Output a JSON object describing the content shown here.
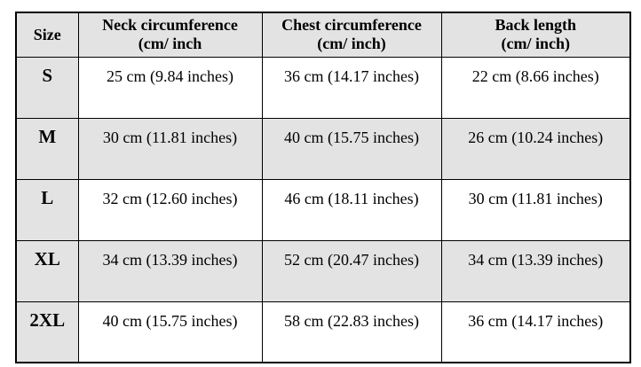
{
  "colors": {
    "page_bg": "#ffffff",
    "shaded_bg": "#e3e3e3",
    "border": "#000000",
    "text": "#000000"
  },
  "size_chart": {
    "columns": [
      {
        "id": "size",
        "line1": "Size",
        "line2": ""
      },
      {
        "id": "neck",
        "line1": "Neck circumference",
        "line2": "(cm/ inch"
      },
      {
        "id": "chest",
        "line1": "Chest circumference",
        "line2": "(cm/ inch)"
      },
      {
        "id": "back",
        "line1": "Back length",
        "line2": "(cm/ inch)"
      }
    ],
    "rows": [
      {
        "size": "S",
        "neck": "25 cm (9.84 inches)",
        "chest": "36 cm (14.17 inches)",
        "back": "22 cm (8.66 inches)"
      },
      {
        "size": "M",
        "neck": "30 cm (11.81 inches)",
        "chest": "40 cm (15.75 inches)",
        "back": "26 cm (10.24 inches)"
      },
      {
        "size": "L",
        "neck": "32 cm (12.60 inches)",
        "chest": "46 cm (18.11 inches)",
        "back": "30 cm (11.81 inches)"
      },
      {
        "size": "XL",
        "neck": "34 cm (13.39 inches)",
        "chest": "52 cm (20.47 inches)",
        "back": "34 cm (13.39 inches)"
      },
      {
        "size": "2XL",
        "neck": "40 cm (15.75 inches)",
        "chest": "58 cm (22.83 inches)",
        "back": "36 cm (14.17 inches)"
      }
    ]
  },
  "chart_data": {
    "type": "table",
    "title": "",
    "columns": [
      "Size",
      "Neck circumference (cm/ inch",
      "Chest circumference (cm/ inch)",
      "Back length (cm/ inch)"
    ],
    "rows": [
      [
        "S",
        "25 cm (9.84 inches)",
        "36 cm (14.17 inches)",
        "22 cm (8.66 inches)"
      ],
      [
        "M",
        "30 cm (11.81 inches)",
        "40 cm (15.75 inches)",
        "26 cm (10.24 inches)"
      ],
      [
        "L",
        "32 cm (12.60 inches)",
        "46 cm (18.11 inches)",
        "30 cm (11.81 inches)"
      ],
      [
        "XL",
        "34 cm (13.39 inches)",
        "52 cm (20.47 inches)",
        "34 cm (13.39 inches)"
      ],
      [
        "2XL",
        "40 cm (15.75 inches)",
        "58 cm (22.83 inches)",
        "36 cm (14.17 inches)"
      ]
    ],
    "numeric": {
      "sizes": [
        "S",
        "M",
        "L",
        "XL",
        "2XL"
      ],
      "neck_cm": [
        25,
        30,
        32,
        34,
        40
      ],
      "neck_inch": [
        9.84,
        11.81,
        12.6,
        13.39,
        15.75
      ],
      "chest_cm": [
        36,
        40,
        46,
        52,
        58
      ],
      "chest_inch": [
        14.17,
        15.75,
        18.11,
        20.47,
        22.83
      ],
      "back_cm": [
        22,
        26,
        30,
        34,
        36
      ],
      "back_inch": [
        8.66,
        10.24,
        11.81,
        13.39,
        14.17
      ]
    }
  }
}
